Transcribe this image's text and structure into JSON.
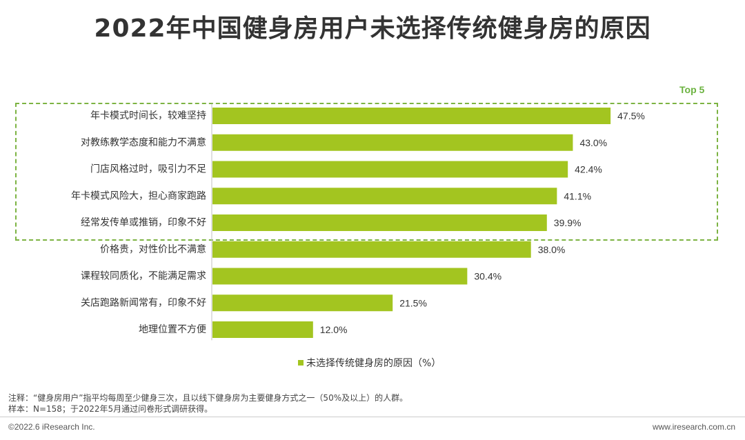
{
  "title": "2022年中国健身房用户未选择传统健身房的原因",
  "top5_label": "Top 5",
  "legend_label": "未选择传统健身房的原因（%）",
  "notes": {
    "line1": "注释：“健身房用户”指平均每周至少健身三次，且以线下健身房为主要健身方式之一（50%及以上）的人群。",
    "line2": "样本：N=158；于2022年5月通过问卷形式调研获得。"
  },
  "footer": {
    "copyright": "©2022.6 iResearch Inc.",
    "website": "www.iresearch.com.cn"
  },
  "colors": {
    "bar": "#a3c520",
    "highlight_border": "#7cb342",
    "top5_text": "#6ab23e"
  },
  "chart_data": {
    "type": "bar",
    "orientation": "horizontal",
    "categories": [
      "年卡模式时间长，较难坚持",
      "对教练教学态度和能力不满意",
      "门店风格过时，吸引力不足",
      "年卡模式风险大，担心商家跑路",
      "经常发传单或推销，印象不好",
      "价格贵，对性价比不满意",
      "课程较同质化，不能满足需求",
      "关店跑路新闻常有，印象不好",
      "地理位置不方便"
    ],
    "values": [
      47.5,
      43.0,
      42.4,
      41.1,
      39.9,
      38.0,
      30.4,
      21.5,
      12.0
    ],
    "value_labels": [
      "47.5%",
      "43.0%",
      "42.4%",
      "41.1%",
      "39.9%",
      "38.0%",
      "30.4%",
      "21.5%",
      "12.0%"
    ],
    "unit": "%",
    "series": [
      {
        "name": "未选择传统健身房的原因（%）",
        "values": [
          47.5,
          43.0,
          42.4,
          41.1,
          39.9,
          38.0,
          30.4,
          21.5,
          12.0
        ]
      }
    ],
    "highlight_top_n": 5,
    "legend_position": "bottom",
    "grid": false
  }
}
